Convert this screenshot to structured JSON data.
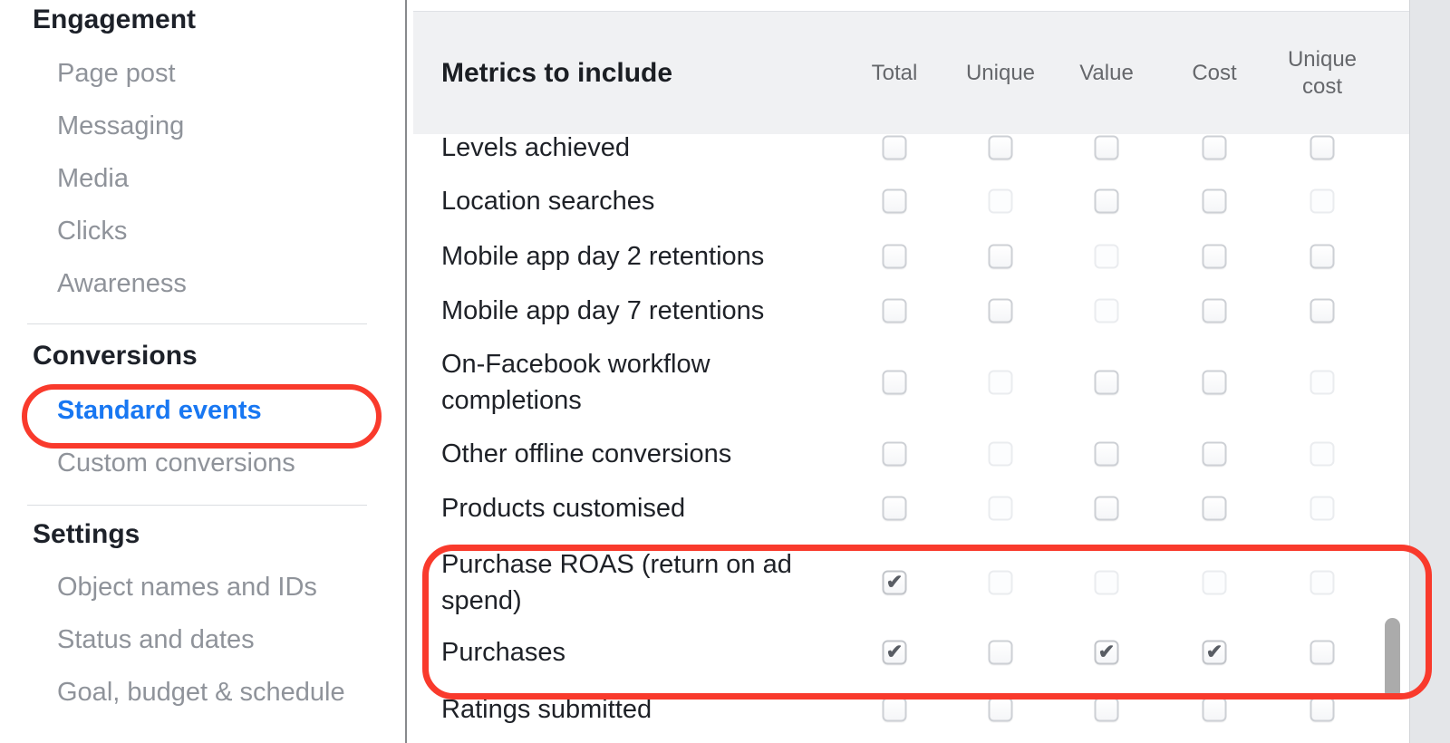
{
  "sidebar": {
    "sections": [
      {
        "title": "Engagement",
        "items": [
          {
            "label": "Page post"
          },
          {
            "label": "Messaging"
          },
          {
            "label": "Media"
          },
          {
            "label": "Clicks"
          },
          {
            "label": "Awareness"
          }
        ]
      },
      {
        "title": "Conversions",
        "items": [
          {
            "label": "Standard events",
            "selected": true
          },
          {
            "label": "Custom conversions"
          }
        ]
      },
      {
        "title": "Settings",
        "items": [
          {
            "label": "Object names and IDs"
          },
          {
            "label": "Status and dates"
          },
          {
            "label": "Goal, budget & schedule"
          }
        ]
      }
    ]
  },
  "table": {
    "title": "Metrics to include",
    "columns": [
      "Total",
      "Unique",
      "Value",
      "Cost",
      "Unique cost"
    ],
    "rows": [
      {
        "label": "Levels achieved",
        "cells": [
          "off",
          "off",
          "off",
          "off",
          "off"
        ]
      },
      {
        "label": "Location searches",
        "cells": [
          "off",
          "disabled",
          "off",
          "off",
          "disabled"
        ]
      },
      {
        "label": "Mobile app day 2 retentions",
        "cells": [
          "off",
          "off",
          "disabled",
          "off",
          "off"
        ]
      },
      {
        "label": "Mobile app day 7 retentions",
        "cells": [
          "off",
          "off",
          "disabled",
          "off",
          "off"
        ]
      },
      {
        "label": "On-Facebook workflow completions",
        "cells": [
          "off",
          "disabled",
          "off",
          "off",
          "disabled"
        ]
      },
      {
        "label": "Other offline conversions",
        "cells": [
          "off",
          "disabled",
          "off",
          "off",
          "disabled"
        ]
      },
      {
        "label": "Products customised",
        "cells": [
          "off",
          "disabled",
          "off",
          "off",
          "disabled"
        ]
      },
      {
        "label": "Purchase ROAS (return on ad spend)",
        "cells": [
          "checked",
          "disabled",
          "disabled",
          "disabled",
          "disabled"
        ]
      },
      {
        "label": "Purchases",
        "cells": [
          "checked",
          "off",
          "checked",
          "checked",
          "off"
        ]
      },
      {
        "label": "Ratings submitted",
        "cells": [
          "off",
          "off",
          "off",
          "off",
          "off"
        ]
      }
    ]
  },
  "checkmark_glyph": "✔",
  "annotations": {
    "marker_color": "#f93a2c",
    "sidebar_highlight": "Standard events",
    "table_highlight": [
      "Purchase ROAS (return on ad spend)",
      "Purchases"
    ]
  },
  "colors": {
    "selected_link_blue": "#1877f2",
    "header_background": "#f0f1f3",
    "muted_sidebar_text": "#8f939a",
    "dark_text": "#1d2129",
    "column_header_text": "#65676b"
  }
}
